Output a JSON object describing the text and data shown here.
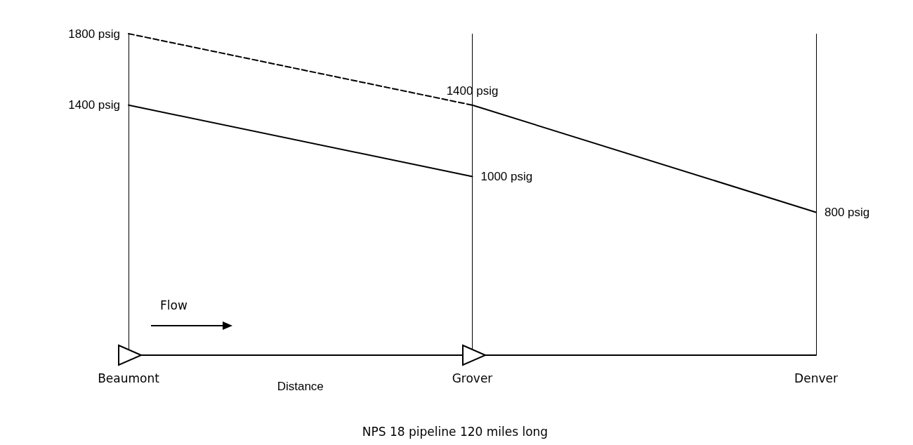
{
  "chart_data": {
    "type": "line",
    "categories": [
      "Beaumont",
      "Grover",
      "Denver"
    ],
    "xlabel": "Distance",
    "series": [
      {
        "color": "#000000",
        "line_style": "dashed",
        "values": [
          1800,
          1400,
          null
        ],
        "value_labels": [
          "1800 psig",
          null,
          null
        ]
      },
      {
        "color": "#000000",
        "line_style": "solid",
        "values": [
          1400,
          1000,
          null
        ],
        "value_labels": [
          "1400 psig",
          "1000 psig",
          null
        ]
      },
      {
        "color": "#000000",
        "line_style": "solid",
        "values": [
          null,
          1400,
          800
        ],
        "value_labels": [
          null,
          "1400 psig",
          "800 psig"
        ]
      }
    ],
    "ref_lines": [
      {
        "axis": "x",
        "value": "Beaumont",
        "color": "#000000"
      },
      {
        "axis": "x",
        "value": "Grover",
        "color": "#000000"
      },
      {
        "axis": "x",
        "value": "Denver",
        "color": "#000000"
      }
    ],
    "annotations": [
      "Flow",
      "NPS 18 pipeline 120 miles long"
    ],
    "marker": "none",
    "grid": false,
    "tick_labels": "x"
  }
}
